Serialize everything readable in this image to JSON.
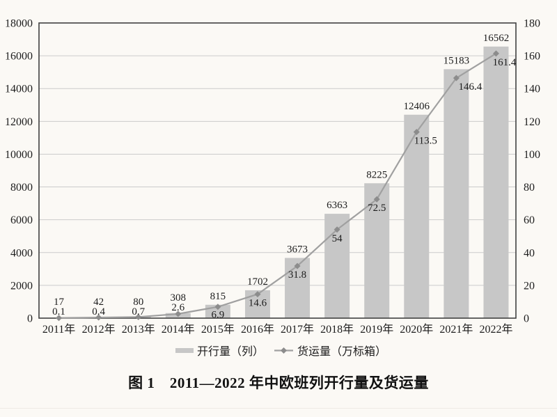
{
  "page": {
    "background": "#fbf9f5"
  },
  "caption": "图 1　2011—2022 年中欧班列开行量及货运量",
  "chart_data": {
    "type": "bar+line",
    "categories": [
      "2011年",
      "2012年",
      "2013年",
      "2014年",
      "2015年",
      "2016年",
      "2017年",
      "2018年",
      "2019年",
      "2020年",
      "2021年",
      "2022年"
    ],
    "series": [
      {
        "name": "开行量（列）",
        "type": "bar",
        "axis": "left",
        "values": [
          17,
          42,
          80,
          308,
          815,
          1702,
          3673,
          6363,
          8225,
          12406,
          15183,
          16562
        ],
        "color": "#c7c7c7"
      },
      {
        "name": "货运量（万标箱）",
        "type": "line",
        "axis": "right",
        "values": [
          0.1,
          0.4,
          0.7,
          2.6,
          6.9,
          14.6,
          31.8,
          54,
          72.5,
          113.5,
          146.4,
          161.4
        ],
        "color": "#a0a0a0",
        "marker": "diamond",
        "marker_color": "#8c8c8c"
      }
    ],
    "left_axis": {
      "min": 0,
      "max": 18000,
      "step": 2000
    },
    "right_axis": {
      "min": 0,
      "max": 180,
      "step": 20
    },
    "grid": true,
    "data_labels": true,
    "legend_position": "bottom",
    "colors": {
      "axis_border": "#404040",
      "gridline": "#cbcbcb",
      "text": "#1c1c1c"
    }
  }
}
